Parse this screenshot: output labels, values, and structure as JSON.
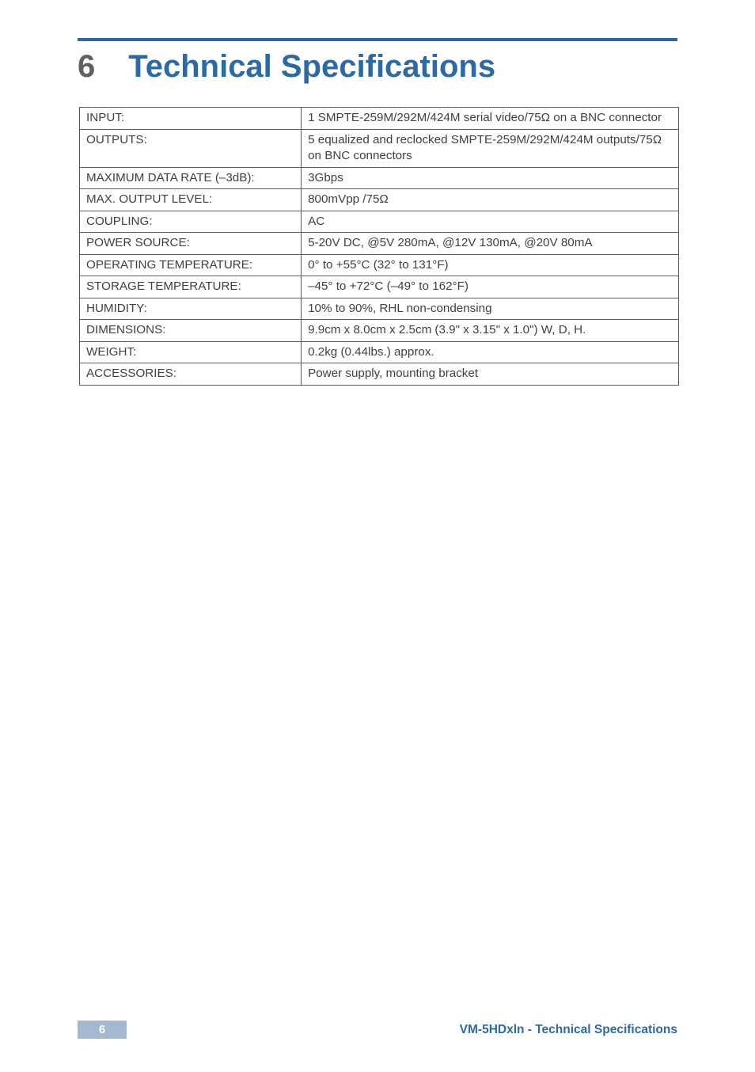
{
  "chapter": {
    "number": "6",
    "title": "Technical Specifications"
  },
  "specs": {
    "rows": [
      {
        "label": "INPUT:",
        "value": "1 SMPTE-259M/292M/424M serial video/75Ω on a BNC connector"
      },
      {
        "label": "OUTPUTS:",
        "value": "5 equalized and reclocked SMPTE-259M/292M/424M outputs/75Ω on BNC connectors"
      },
      {
        "label": "MAXIMUM DATA RATE (–3dB):",
        "value": "3Gbps"
      },
      {
        "label": "MAX. OUTPUT LEVEL:",
        "value": "800mVpp /75Ω"
      },
      {
        "label": "COUPLING:",
        "value": "AC"
      },
      {
        "label": "POWER SOURCE:",
        "value": "5-20V DC, @5V 280mA, @12V 130mA, @20V 80mA"
      },
      {
        "label": "OPERATING TEMPERATURE:",
        "value": "0° to +55°C (32° to 131°F)"
      },
      {
        "label": "STORAGE TEMPERATURE:",
        "value": "–45° to +72°C (–49° to 162°F)"
      },
      {
        "label": "HUMIDITY:",
        "value": "10% to 90%, RHL non-condensing"
      },
      {
        "label": "DIMENSIONS:",
        "value": "9.9cm  x 8.0cm x 2.5cm (3.9\" x 3.15\" x 1.0\") W, D, H."
      },
      {
        "label": "WEIGHT:",
        "value": "0.2kg (0.44lbs.) approx."
      },
      {
        "label": "ACCESSORIES:",
        "value": "Power supply, mounting bracket"
      }
    ]
  },
  "footer": {
    "page_number": "6",
    "text": "VM-5HDxln - Technical Specifications"
  },
  "colors": {
    "accent": "#2b6aa3",
    "gray_text": "#606060",
    "cell_text": "#404040",
    "border": "#5a5a5a",
    "page_box_bg": "#a3b9d0",
    "page_box_fg": "#ffffff"
  }
}
